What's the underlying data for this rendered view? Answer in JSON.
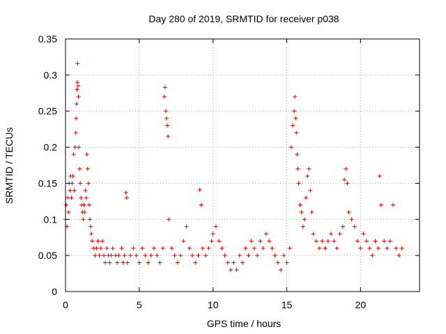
{
  "chart_data": {
    "type": "scatter",
    "title": "Day 280 of 2019, SRMTID for receiver p038",
    "xlabel": "GPS time / hours",
    "ylabel": "SRMTID / TECUs",
    "xlim": [
      0,
      24
    ],
    "ylim": [
      0,
      0.35
    ],
    "xticks": [
      0,
      5,
      10,
      15,
      20
    ],
    "xtick_labels": [
      "0",
      "5",
      "10",
      "15",
      "20"
    ],
    "yticks": [
      0,
      0.05,
      0.1,
      0.15,
      0.2,
      0.25,
      0.3,
      0.35
    ],
    "ytick_labels": [
      "0",
      "0.05",
      "0.1",
      "0.15",
      "0.2",
      "0.25",
      "0.3",
      "0.35"
    ],
    "grid": true,
    "marker": "+",
    "color": "#e00000",
    "series": [
      {
        "name": "SRMTID",
        "points": [
          [
            0.0,
            0.1
          ],
          [
            0.05,
            0.12
          ],
          [
            0.1,
            0.09
          ],
          [
            0.15,
            0.13
          ],
          [
            0.2,
            0.11
          ],
          [
            0.25,
            0.15
          ],
          [
            0.3,
            0.14
          ],
          [
            0.35,
            0.16
          ],
          [
            0.4,
            0.13
          ],
          [
            0.45,
            0.15
          ],
          [
            0.5,
            0.16
          ],
          [
            0.55,
            0.19
          ],
          [
            0.6,
            0.14
          ],
          [
            0.65,
            0.2
          ],
          [
            0.7,
            0.22
          ],
          [
            0.72,
            0.24
          ],
          [
            0.75,
            0.26
          ],
          [
            0.78,
            0.28
          ],
          [
            0.8,
            0.29
          ],
          [
            0.82,
            0.316
          ],
          [
            0.85,
            0.285
          ],
          [
            0.88,
            0.27
          ],
          [
            0.9,
            0.2
          ],
          [
            0.95,
            0.17
          ],
          [
            1.0,
            0.15
          ],
          [
            1.05,
            0.13
          ],
          [
            1.1,
            0.12
          ],
          [
            1.15,
            0.11
          ],
          [
            1.2,
            0.1
          ],
          [
            1.25,
            0.12
          ],
          [
            1.3,
            0.11
          ],
          [
            1.35,
            0.14
          ],
          [
            1.4,
            0.13
          ],
          [
            1.45,
            0.19
          ],
          [
            1.5,
            0.17
          ],
          [
            1.55,
            0.15
          ],
          [
            1.6,
            0.12
          ],
          [
            1.65,
            0.1
          ],
          [
            1.7,
            0.09
          ],
          [
            1.75,
            0.08
          ],
          [
            1.8,
            0.07
          ],
          [
            1.9,
            0.06
          ],
          [
            2.0,
            0.05
          ],
          [
            2.1,
            0.06
          ],
          [
            2.2,
            0.07
          ],
          [
            2.3,
            0.05
          ],
          [
            2.4,
            0.06
          ],
          [
            2.5,
            0.07
          ],
          [
            2.6,
            0.05
          ],
          [
            2.7,
            0.04
          ],
          [
            2.8,
            0.06
          ],
          [
            2.9,
            0.05
          ],
          [
            3.0,
            0.04
          ],
          [
            3.1,
            0.05
          ],
          [
            3.2,
            0.06
          ],
          [
            3.4,
            0.05
          ],
          [
            3.5,
            0.04
          ],
          [
            3.6,
            0.05
          ],
          [
            3.8,
            0.06
          ],
          [
            3.9,
            0.04
          ],
          [
            4.0,
            0.05
          ],
          [
            4.1,
            0.137
          ],
          [
            4.15,
            0.13
          ],
          [
            4.2,
            0.04
          ],
          [
            4.4,
            0.05
          ],
          [
            4.6,
            0.06
          ],
          [
            4.8,
            0.05
          ],
          [
            5.0,
            0.04
          ],
          [
            5.2,
            0.06
          ],
          [
            5.4,
            0.05
          ],
          [
            5.6,
            0.04
          ],
          [
            5.8,
            0.05
          ],
          [
            6.0,
            0.06
          ],
          [
            6.2,
            0.05
          ],
          [
            6.4,
            0.04
          ],
          [
            6.6,
            0.06
          ],
          [
            6.7,
            0.27
          ],
          [
            6.75,
            0.283
          ],
          [
            6.8,
            0.25
          ],
          [
            6.85,
            0.24
          ],
          [
            6.9,
            0.23
          ],
          [
            6.95,
            0.215
          ],
          [
            7.0,
            0.1
          ],
          [
            7.2,
            0.06
          ],
          [
            7.4,
            0.05
          ],
          [
            7.6,
            0.04
          ],
          [
            7.8,
            0.05
          ],
          [
            8.0,
            0.07
          ],
          [
            8.2,
            0.09
          ],
          [
            8.4,
            0.06
          ],
          [
            8.6,
            0.05
          ],
          [
            8.8,
            0.04
          ],
          [
            9.0,
            0.05
          ],
          [
            9.1,
            0.141
          ],
          [
            9.2,
            0.12
          ],
          [
            9.3,
            0.06
          ],
          [
            9.5,
            0.05
          ],
          [
            9.7,
            0.06
          ],
          [
            9.9,
            0.07
          ],
          [
            10.0,
            0.08
          ],
          [
            10.2,
            0.09
          ],
          [
            10.4,
            0.07
          ],
          [
            10.6,
            0.06
          ],
          [
            10.8,
            0.05
          ],
          [
            11.0,
            0.04
          ],
          [
            11.2,
            0.03
          ],
          [
            11.4,
            0.04
          ],
          [
            11.6,
            0.03
          ],
          [
            11.8,
            0.05
          ],
          [
            12.0,
            0.04
          ],
          [
            12.2,
            0.06
          ],
          [
            12.4,
            0.05
          ],
          [
            12.6,
            0.07
          ],
          [
            12.8,
            0.06
          ],
          [
            13.0,
            0.05
          ],
          [
            13.2,
            0.07
          ],
          [
            13.4,
            0.06
          ],
          [
            13.6,
            0.08
          ],
          [
            13.8,
            0.07
          ],
          [
            14.0,
            0.06
          ],
          [
            14.2,
            0.05
          ],
          [
            14.4,
            0.04
          ],
          [
            14.6,
            0.03
          ],
          [
            14.8,
            0.05
          ],
          [
            15.0,
            0.04
          ],
          [
            15.2,
            0.06
          ],
          [
            15.3,
            0.2
          ],
          [
            15.4,
            0.23
          ],
          [
            15.5,
            0.25
          ],
          [
            15.55,
            0.27
          ],
          [
            15.6,
            0.24
          ],
          [
            15.65,
            0.22
          ],
          [
            15.7,
            0.19
          ],
          [
            15.75,
            0.17
          ],
          [
            15.8,
            0.15
          ],
          [
            15.9,
            0.12
          ],
          [
            16.0,
            0.11
          ],
          [
            16.1,
            0.09
          ],
          [
            16.2,
            0.1
          ],
          [
            16.3,
            0.13
          ],
          [
            16.4,
            0.16
          ],
          [
            16.5,
            0.17
          ],
          [
            16.6,
            0.14
          ],
          [
            16.7,
            0.11
          ],
          [
            16.8,
            0.08
          ],
          [
            17.0,
            0.07
          ],
          [
            17.2,
            0.06
          ],
          [
            17.4,
            0.07
          ],
          [
            17.6,
            0.06
          ],
          [
            17.8,
            0.07
          ],
          [
            18.0,
            0.08
          ],
          [
            18.2,
            0.07
          ],
          [
            18.4,
            0.06
          ],
          [
            18.6,
            0.08
          ],
          [
            18.8,
            0.09
          ],
          [
            18.9,
            0.155
          ],
          [
            19.0,
            0.17
          ],
          [
            19.1,
            0.15
          ],
          [
            19.2,
            0.11
          ],
          [
            19.4,
            0.1
          ],
          [
            19.6,
            0.09
          ],
          [
            19.8,
            0.07
          ],
          [
            20.0,
            0.06
          ],
          [
            20.2,
            0.08
          ],
          [
            20.4,
            0.07
          ],
          [
            20.6,
            0.06
          ],
          [
            20.8,
            0.05
          ],
          [
            21.0,
            0.07
          ],
          [
            21.2,
            0.06
          ],
          [
            21.3,
            0.16
          ],
          [
            21.4,
            0.12
          ],
          [
            21.6,
            0.07
          ],
          [
            21.8,
            0.06
          ],
          [
            22.0,
            0.07
          ],
          [
            22.2,
            0.12
          ],
          [
            22.4,
            0.06
          ],
          [
            22.6,
            0.05
          ],
          [
            22.8,
            0.06
          ]
        ]
      }
    ]
  }
}
